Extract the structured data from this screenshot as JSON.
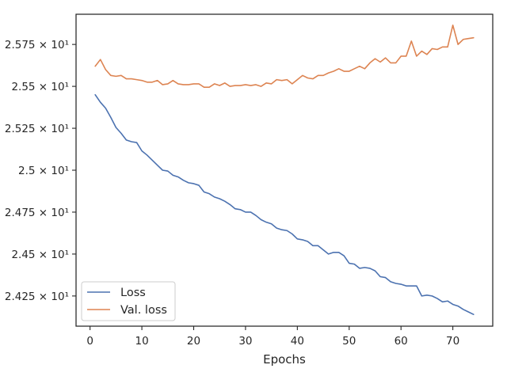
{
  "chart_data": {
    "type": "line",
    "xlabel": "Epochs",
    "ylabel": "",
    "xlim": [
      -2.7,
      77.7
    ],
    "ylim": [
      24.07,
      25.93
    ],
    "x_ticks": [
      0,
      10,
      20,
      30,
      40,
      50,
      60,
      70
    ],
    "y_ticks": [
      {
        "value": 24.25,
        "label": "2.425 × 10¹"
      },
      {
        "value": 24.5,
        "label": "2.45 × 10¹"
      },
      {
        "value": 24.75,
        "label": "2.475 × 10¹"
      },
      {
        "value": 25.0,
        "label": "2.5 × 10¹"
      },
      {
        "value": 25.25,
        "label": "2.525 × 10¹"
      },
      {
        "value": 25.5,
        "label": "2.55 × 10¹"
      },
      {
        "value": 25.75,
        "label": "2.575 × 10¹"
      }
    ],
    "grid": false,
    "legend": "lower-left",
    "x": [
      1,
      2,
      3,
      4,
      5,
      6,
      7,
      8,
      9,
      10,
      11,
      12,
      13,
      14,
      15,
      16,
      17,
      18,
      19,
      20,
      21,
      22,
      23,
      24,
      25,
      26,
      27,
      28,
      29,
      30,
      31,
      32,
      33,
      34,
      35,
      36,
      37,
      38,
      39,
      40,
      41,
      42,
      43,
      44,
      45,
      46,
      47,
      48,
      49,
      50,
      51,
      52,
      53,
      54,
      55,
      56,
      57,
      58,
      59,
      60,
      61,
      62,
      63,
      64,
      65,
      66,
      67,
      68,
      69,
      70,
      71,
      72,
      73,
      74
    ],
    "series": [
      {
        "name": "Loss",
        "color": "#4c72b0",
        "values": [
          25.45,
          25.405,
          25.37,
          25.315,
          25.255,
          25.22,
          25.18,
          25.17,
          25.165,
          25.115,
          25.09,
          25.06,
          25.03,
          25.0,
          24.995,
          24.97,
          24.96,
          24.94,
          24.925,
          24.92,
          24.91,
          24.87,
          24.86,
          24.84,
          24.83,
          24.815,
          24.795,
          24.77,
          24.765,
          24.75,
          24.75,
          24.73,
          24.705,
          24.69,
          24.68,
          24.655,
          24.645,
          24.64,
          24.62,
          24.59,
          24.585,
          24.575,
          24.55,
          24.55,
          24.525,
          24.5,
          24.51,
          24.51,
          24.49,
          24.445,
          24.44,
          24.415,
          24.42,
          24.415,
          24.4,
          24.365,
          24.36,
          24.335,
          24.325,
          24.32,
          24.31,
          24.31,
          24.31,
          24.25,
          24.255,
          24.25,
          24.235,
          24.215,
          24.22,
          24.2,
          24.19,
          24.17,
          24.155,
          24.14
        ]
      },
      {
        "name": "Val. loss",
        "color": "#dd8452",
        "values": [
          25.62,
          25.66,
          25.6,
          25.565,
          25.56,
          25.565,
          25.545,
          25.545,
          25.54,
          25.535,
          25.525,
          25.525,
          25.535,
          25.51,
          25.515,
          25.535,
          25.515,
          25.51,
          25.51,
          25.515,
          25.515,
          25.495,
          25.495,
          25.515,
          25.505,
          25.52,
          25.5,
          25.505,
          25.505,
          25.51,
          25.505,
          25.51,
          25.5,
          25.52,
          25.515,
          25.54,
          25.535,
          25.54,
          25.515,
          25.54,
          25.565,
          25.55,
          25.545,
          25.565,
          25.565,
          25.58,
          25.59,
          25.605,
          25.59,
          25.59,
          25.605,
          25.62,
          25.605,
          25.64,
          25.665,
          25.645,
          25.67,
          25.64,
          25.64,
          25.68,
          25.68,
          25.77,
          25.68,
          25.71,
          25.69,
          25.725,
          25.72,
          25.735,
          25.735,
          25.865,
          25.75,
          25.78,
          25.785,
          25.79
        ]
      }
    ]
  }
}
